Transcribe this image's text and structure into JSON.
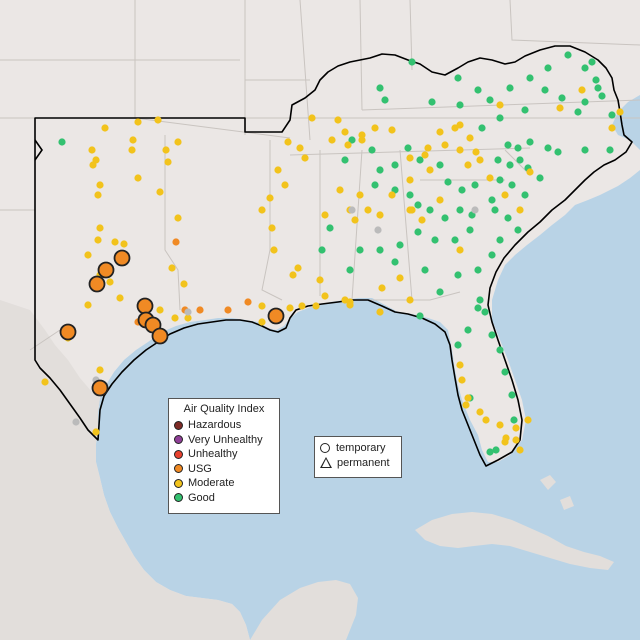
{
  "colors": {
    "ocean": "#b9d3e6",
    "land": "#ebe7e5",
    "foreign_land": "#e2dedb",
    "state_border": "#c9c4c0",
    "region_outline": "#000000",
    "Hazardous": "#7e2b26",
    "Very Unhealthy": "#8f3f97",
    "Unhealthy": "#e8412e",
    "USG": "#f08a24",
    "Moderate": "#f2c31c",
    "Good": "#33c170",
    "No data": "#bbbbbb"
  },
  "aqi_legend": {
    "title": "Air Quality Index",
    "items": [
      {
        "label": "Hazardous",
        "color": "#7e2b26"
      },
      {
        "label": "Very Unhealthy",
        "color": "#8f3f97"
      },
      {
        "label": "Unhealthy",
        "color": "#e8412e"
      },
      {
        "label": "USG",
        "color": "#f08a24"
      },
      {
        "label": "Moderate",
        "color": "#f2c31c"
      },
      {
        "label": "Good",
        "color": "#33c170"
      }
    ]
  },
  "monitor_type_legend": {
    "items": [
      {
        "label": "temporary",
        "shape": "circle"
      },
      {
        "label": "permanent",
        "shape": "triangle"
      }
    ]
  }
}
